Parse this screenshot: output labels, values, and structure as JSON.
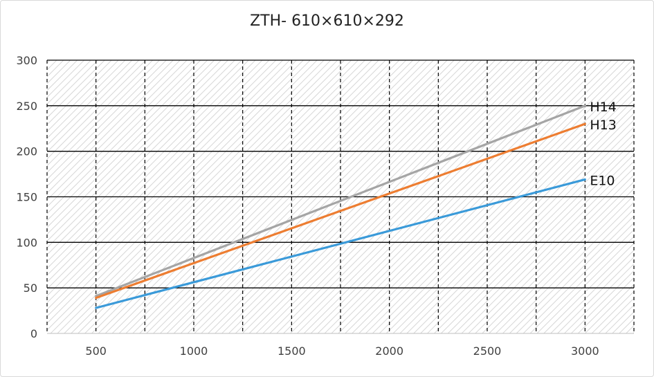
{
  "chart_data": {
    "type": "line",
    "title": "ZTH- 610×610×292",
    "xlabel": "",
    "ylabel": "",
    "x_ticks": [
      500,
      1000,
      1500,
      2000,
      2500,
      3000
    ],
    "y_ticks": [
      0,
      50,
      100,
      150,
      200,
      250,
      300
    ],
    "xlim": [
      250,
      3250
    ],
    "ylim": [
      0,
      300
    ],
    "grid": true,
    "legend": "series labels at line ends (right)",
    "series": [
      {
        "name": "H14",
        "color": "#a5a5a5",
        "x": [
          500,
          3000
        ],
        "y": [
          41,
          250
        ]
      },
      {
        "name": "H13",
        "color": "#ed7d31",
        "x": [
          500,
          3000
        ],
        "y": [
          39,
          230
        ]
      },
      {
        "name": "E10",
        "color": "#3a9ad9",
        "x": [
          500,
          3000
        ],
        "y": [
          28,
          169
        ]
      }
    ]
  }
}
